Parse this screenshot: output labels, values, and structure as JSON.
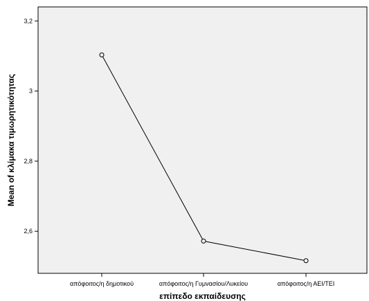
{
  "chart_data": {
    "type": "line",
    "title": "",
    "xlabel": "επίπεδο εκπαίδευσης",
    "ylabel": "Mean of κλίμακα τιμωρητικότητας",
    "categories": [
      "απόφοιτος/η δημοτικού",
      "απόφοιτος/η Γυμνασίου/Λυκείου",
      "απόφοιτος/η ΑΕΙ/ΤΕΙ"
    ],
    "values": [
      3.103,
      2.572,
      2.516
    ],
    "ylim": [
      2.48,
      3.24
    ],
    "yticks": [
      2.6,
      2.8,
      3.0,
      3.2
    ],
    "ytick_labels": [
      "2,6",
      "2,8",
      "3",
      "3,2"
    ],
    "grid": false,
    "legend": "none",
    "colors": {
      "plot_background": "#f0f0f0",
      "line": "#000000",
      "marker_edge": "#000000"
    }
  }
}
